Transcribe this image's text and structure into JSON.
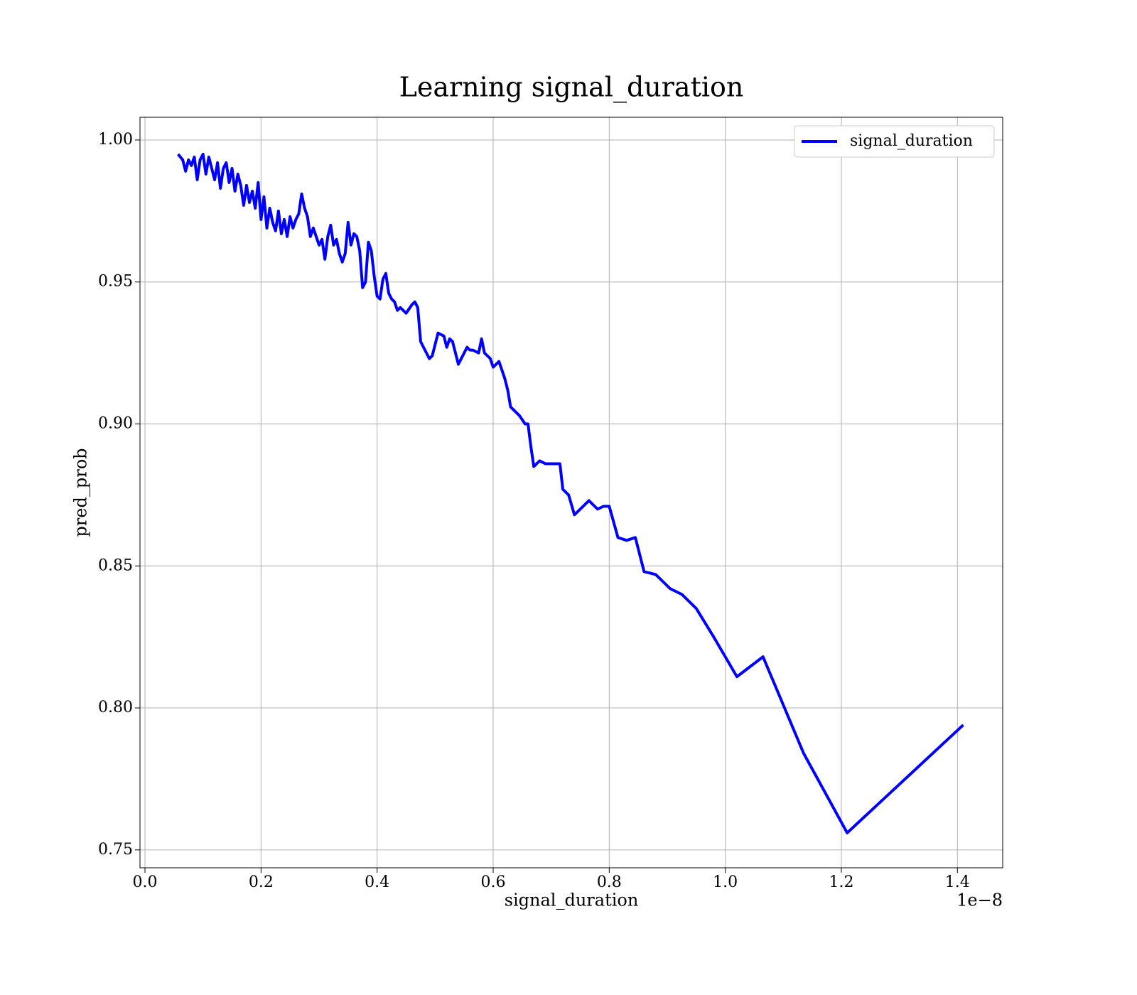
{
  "chart_data": {
    "type": "line",
    "title": "Learning signal_duration",
    "xlabel": "signal_duration",
    "ylabel": "pred_prob",
    "x_offset_label": "1e−8",
    "x": [
      0.057,
      0.065,
      0.07,
      0.075,
      0.08,
      0.085,
      0.09,
      0.095,
      0.1,
      0.105,
      0.11,
      0.115,
      0.12,
      0.125,
      0.13,
      0.135,
      0.14,
      0.145,
      0.15,
      0.155,
      0.16,
      0.165,
      0.17,
      0.175,
      0.18,
      0.185,
      0.19,
      0.195,
      0.2,
      0.205,
      0.21,
      0.215,
      0.22,
      0.225,
      0.23,
      0.235,
      0.24,
      0.245,
      0.25,
      0.255,
      0.26,
      0.265,
      0.27,
      0.275,
      0.28,
      0.285,
      0.29,
      0.295,
      0.3,
      0.305,
      0.31,
      0.315,
      0.32,
      0.325,
      0.33,
      0.335,
      0.34,
      0.345,
      0.35,
      0.355,
      0.36,
      0.365,
      0.37,
      0.375,
      0.38,
      0.385,
      0.39,
      0.395,
      0.4,
      0.405,
      0.41,
      0.415,
      0.42,
      0.425,
      0.43,
      0.435,
      0.44,
      0.45,
      0.46,
      0.465,
      0.47,
      0.475,
      0.48,
      0.49,
      0.495,
      0.505,
      0.515,
      0.52,
      0.525,
      0.53,
      0.54,
      0.555,
      0.56,
      0.565,
      0.575,
      0.58,
      0.585,
      0.595,
      0.6,
      0.61,
      0.62,
      0.625,
      0.63,
      0.64,
      0.645,
      0.655,
      0.66,
      0.665,
      0.67,
      0.68,
      0.69,
      0.7,
      0.715,
      0.72,
      0.73,
      0.74,
      0.75,
      0.765,
      0.78,
      0.79,
      0.8,
      0.815,
      0.83,
      0.845,
      0.86,
      0.88,
      0.905,
      0.925,
      0.95,
      0.98,
      1.02,
      1.065,
      1.135,
      1.21,
      1.41
    ],
    "series": [
      {
        "name": "signal_duration",
        "color": "#0000ff",
        "values": [
          0.995,
          0.993,
          0.989,
          0.993,
          0.991,
          0.994,
          0.986,
          0.993,
          0.995,
          0.988,
          0.994,
          0.99,
          0.986,
          0.992,
          0.983,
          0.99,
          0.992,
          0.985,
          0.99,
          0.982,
          0.988,
          0.984,
          0.977,
          0.984,
          0.978,
          0.982,
          0.976,
          0.985,
          0.972,
          0.98,
          0.969,
          0.976,
          0.971,
          0.968,
          0.975,
          0.967,
          0.972,
          0.966,
          0.973,
          0.969,
          0.972,
          0.974,
          0.981,
          0.976,
          0.973,
          0.966,
          0.969,
          0.966,
          0.963,
          0.965,
          0.958,
          0.966,
          0.97,
          0.963,
          0.965,
          0.96,
          0.957,
          0.96,
          0.971,
          0.963,
          0.967,
          0.966,
          0.961,
          0.948,
          0.95,
          0.964,
          0.961,
          0.952,
          0.945,
          0.944,
          0.951,
          0.953,
          0.946,
          0.944,
          0.943,
          0.94,
          0.941,
          0.939,
          0.942,
          0.943,
          0.941,
          0.929,
          0.927,
          0.923,
          0.924,
          0.932,
          0.931,
          0.927,
          0.93,
          0.929,
          0.921,
          0.927,
          0.926,
          0.926,
          0.925,
          0.93,
          0.925,
          0.923,
          0.92,
          0.922,
          0.916,
          0.912,
          0.906,
          0.904,
          0.903,
          0.9,
          0.9,
          0.892,
          0.885,
          0.887,
          0.886,
          0.886,
          0.886,
          0.877,
          0.875,
          0.868,
          0.87,
          0.873,
          0.87,
          0.871,
          0.871,
          0.86,
          0.859,
          0.86,
          0.848,
          0.847,
          0.842,
          0.84,
          0.835,
          0.825,
          0.811,
          0.818,
          0.784,
          0.756,
          0.794
        ]
      }
    ],
    "xlim": [
      -0.0086,
      1.478
    ],
    "ylim": [
      0.7437,
      1.008
    ],
    "xticks": [
      {
        "value": 0,
        "label": "0.0"
      },
      0.2,
      0.4,
      0.6,
      0.8,
      {
        "value": 1,
        "label": "1.0"
      },
      1.2,
      1.4
    ],
    "yticks": [
      {
        "value": 0.75,
        "label": "0.75"
      },
      {
        "value": 0.8,
        "label": "0.80"
      },
      {
        "value": 0.85,
        "label": "0.85"
      },
      {
        "value": 0.9,
        "label": "0.90"
      },
      {
        "value": 0.95,
        "label": "0.95"
      },
      {
        "value": 1,
        "label": "1.00"
      }
    ],
    "grid": true,
    "legend": "upper right"
  }
}
